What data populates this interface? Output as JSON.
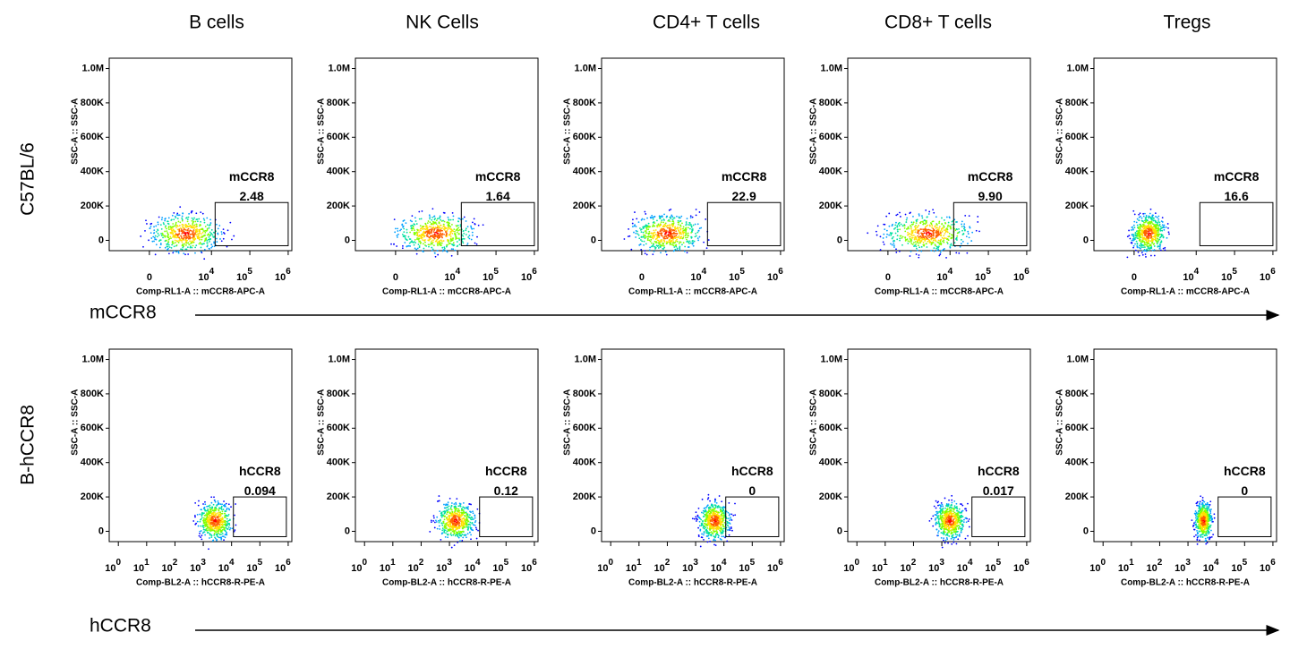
{
  "column_titles": [
    "B cells",
    "NK Cells",
    "CD4+ T cells",
    "CD8+ T cells",
    "Tregs"
  ],
  "y_axis_label": "SSC-A :: SSC-A",
  "ylim": [
    -60000,
    1060000
  ],
  "yticks": [
    0,
    {
      "value": 200000,
      "label": "200K"
    },
    {
      "value": 400000,
      "label": "400K"
    },
    {
      "value": 600000,
      "label": "600K"
    },
    {
      "value": 800000,
      "label": "800K"
    },
    {
      "value": 1000000,
      "label": "1.0M"
    }
  ],
  "rows": [
    {
      "label": "C57BL/6",
      "marker": "mCCR8",
      "x_axis_label": "Comp-RL1-A :: mCCR8-APC-A",
      "xticks": [
        0,
        {
          "value": 10000,
          "label": "10",
          "exponent": "4"
        },
        {
          "value": 100000,
          "label": "10",
          "exponent": "5"
        },
        {
          "value": 1000000,
          "label": "10",
          "exponent": "6"
        }
      ],
      "gates": [
        "2.48",
        "1.64",
        "22.9",
        "9.90",
        "16.6"
      ]
    },
    {
      "label": "B-hCCR8",
      "marker": "hCCR8",
      "x_axis_label": "Comp-BL2-A :: hCCR8-R-PE-A",
      "xticks": [
        {
          "value": 1,
          "label": "10",
          "exponent": "0"
        },
        {
          "value": 10,
          "label": "10",
          "exponent": "1"
        },
        {
          "value": 100,
          "label": "10",
          "exponent": "2"
        },
        {
          "value": 1000,
          "label": "10",
          "exponent": "3"
        },
        {
          "value": 10000,
          "label": "10",
          "exponent": "4"
        },
        {
          "value": 100000,
          "label": "10",
          "exponent": "5"
        },
        {
          "value": 1000000,
          "label": "10",
          "exponent": "6"
        }
      ],
      "gates": [
        "0.094",
        "0.12",
        "0",
        "0.017",
        "0"
      ]
    }
  ]
}
